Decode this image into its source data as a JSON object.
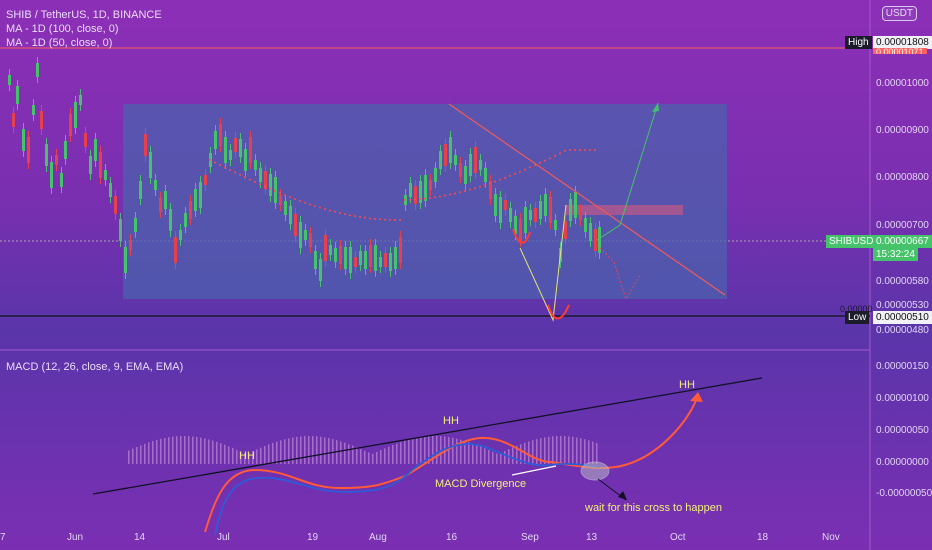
{
  "symbol": {
    "title": "SHIB / TetherUS, 1D, BINANCE",
    "ma100": "MA - 1D (100, close, 0)",
    "ma50": "MA - 1D (50, close, 0)"
  },
  "currency_button": "USDT",
  "price_axis": {
    "labels": [
      "0.00001000",
      "0.00000900",
      "0.00000800",
      "0.00000700",
      "0.00000580",
      "0.00000530",
      "0.00000480"
    ],
    "high_label": "High",
    "high_value": "0.00001808",
    "partial_label": "0.00001071",
    "symbol_tag": "SHIBUSDT",
    "current_price": "0.00000667",
    "countdown": "15:32:24",
    "low_label": "Low",
    "low_value": "0.00000510",
    "low_line_value": "0.00000"
  },
  "macd_axis": {
    "labels": [
      "0.00000150",
      "0.00000100",
      "0.00000050",
      "0.00000000",
      "-0.00000050"
    ]
  },
  "macd_legend": "MACD (12, 26, close, 9, EMA, EMA)",
  "time_axis": {
    "labels": [
      "7",
      "Jun",
      "14",
      "Jul",
      "19",
      "Aug",
      "16",
      "Sep",
      "13",
      "Oct",
      "18",
      "Nov"
    ]
  },
  "annotations": {
    "hh1": "HH",
    "hh2": "HH",
    "hh3": "HH",
    "divergence": "MACD Divergence",
    "wait": "wait for this cross to happen"
  },
  "colors": {
    "background": "#8c2fb7",
    "up": "#45c36b",
    "down": "#e8404a",
    "box": "#4f5fb0",
    "trendline": "#f06060",
    "macd_line": "#2d5bd6",
    "signal_line": "#ff6a3d"
  }
}
